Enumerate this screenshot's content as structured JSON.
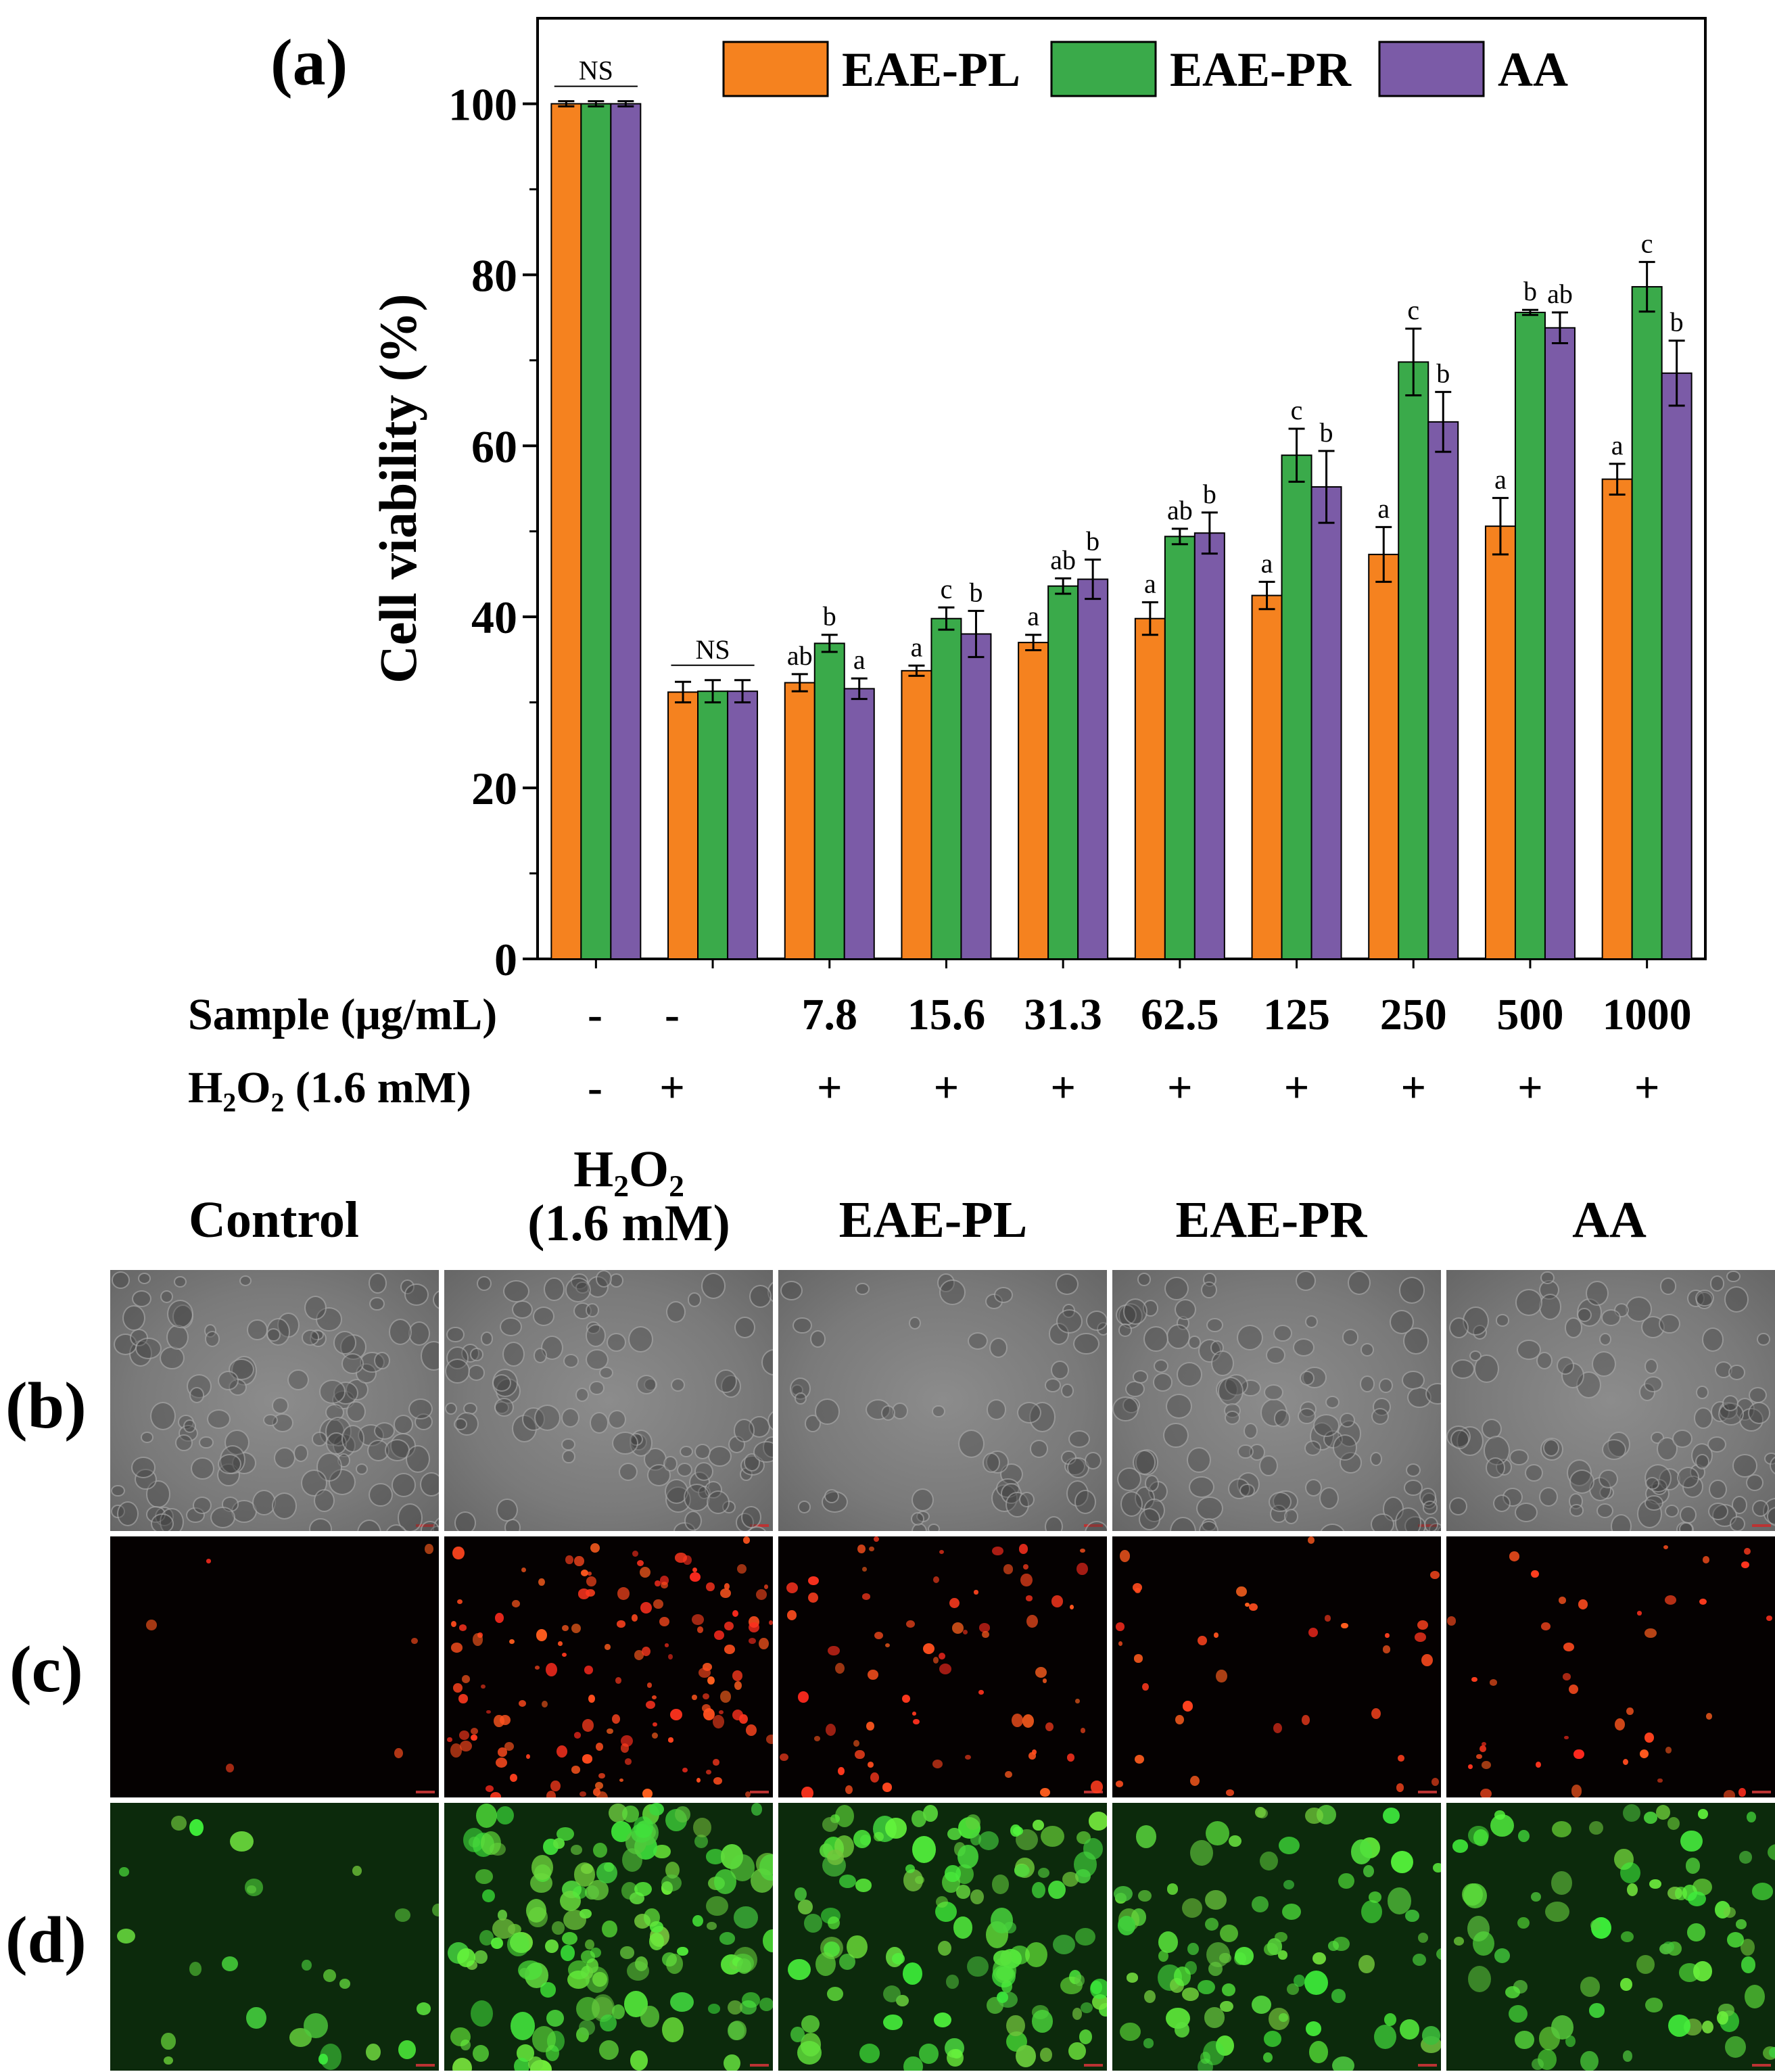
{
  "chart_data": {
    "type": "bar",
    "title": "",
    "ylabel": "Cell viability (%)",
    "xlabel": "",
    "ylim": [
      0,
      110
    ],
    "yticks": [
      0,
      20,
      40,
      60,
      80,
      100
    ],
    "legend_position": "top",
    "groups": [
      "-",
      "-",
      "7.8",
      "15.6",
      "31.3",
      "62.5",
      "125",
      "250",
      "500",
      "1000"
    ],
    "sample_row_label": "Sample (μg/mL)",
    "h2o2_row_label": "H₂O₂ (1.6 mM)",
    "h2o2_values": [
      "-",
      "+",
      "+",
      "+",
      "+",
      "+",
      "+",
      "+",
      "+",
      "+"
    ],
    "series": [
      {
        "name": "EAE-PL",
        "color": "#f5821f",
        "values": [
          100,
          31.2,
          32.3,
          33.7,
          37.0,
          39.8,
          42.5,
          47.3,
          50.6,
          56.1
        ],
        "errors": [
          0.3,
          1.2,
          1.0,
          0.6,
          0.9,
          1.9,
          1.6,
          3.2,
          3.3,
          1.8
        ],
        "letters": [
          "",
          "",
          "ab",
          "a",
          "a",
          "a",
          "a",
          "a",
          "a",
          "a"
        ]
      },
      {
        "name": "EAE-PR",
        "color": "#3aaa4a",
        "values": [
          100,
          31.3,
          36.9,
          39.8,
          43.6,
          49.4,
          58.9,
          69.8,
          75.6,
          78.6
        ],
        "errors": [
          0.3,
          1.3,
          1.0,
          1.3,
          0.9,
          0.9,
          3.1,
          3.9,
          0.3,
          2.9
        ],
        "letters": [
          "",
          "",
          "b",
          "c",
          "ab",
          "ab",
          "c",
          "c",
          "b",
          "c"
        ]
      },
      {
        "name": "AA",
        "color": "#7b5ba7",
        "values": [
          100,
          31.3,
          31.6,
          38.0,
          44.4,
          49.8,
          55.2,
          62.8,
          73.8,
          68.5
        ],
        "errors": [
          0.3,
          1.3,
          1.2,
          2.7,
          2.3,
          2.4,
          4.2,
          3.5,
          1.8,
          3.8
        ],
        "letters": [
          "",
          "",
          "a",
          "b",
          "b",
          "b",
          "b",
          "b",
          "ab",
          "b"
        ]
      }
    ],
    "annotations": [
      {
        "text": "NS",
        "group": 0
      },
      {
        "text": "NS",
        "group": 1
      }
    ]
  },
  "panels": {
    "a": "(a)",
    "b": "(b)",
    "c": "(c)",
    "d": "(d)"
  },
  "column_headers": {
    "control": "Control",
    "h2o2_line1": "H₂O₂",
    "h2o2_line2": "(1.6 mM)",
    "eae_pl": "EAE-PL",
    "eae_pr": "EAE-PR",
    "aa": "AA"
  }
}
